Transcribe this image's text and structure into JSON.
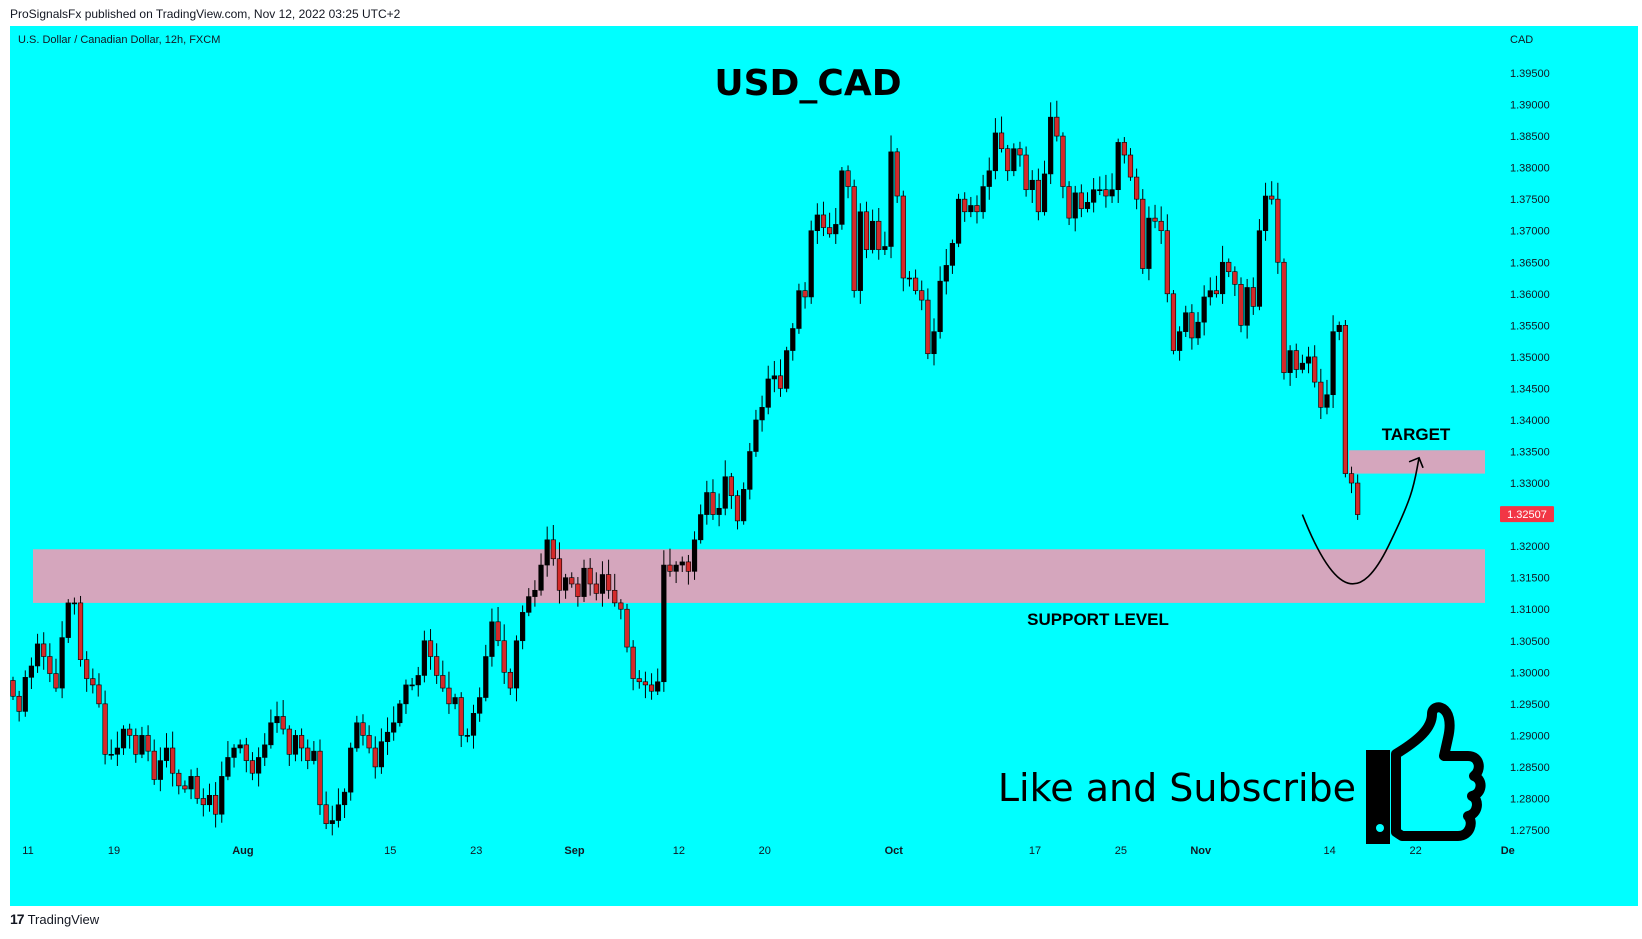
{
  "header": {
    "published": "ProSignalsFx published on TradingView.com, Nov 12, 2022 03:25 UTC+2"
  },
  "footer": {
    "brand": "TradingView"
  },
  "colors": {
    "background": "#00ffff",
    "up_candle": "#000000",
    "down_candle": "#d42a2a",
    "zone": "#d5a6bd",
    "price_badge": "#f23645"
  },
  "chart_data": {
    "type": "candlestick",
    "symbol_label": "U.S. Dollar / Canadian Dollar, 12h, FXCM",
    "title": "USD_CAD",
    "currency": "CAD",
    "ylim": [
      1.272,
      1.399
    ],
    "y_ticks": [
      "1.27500",
      "1.28000",
      "1.28500",
      "1.29000",
      "1.29500",
      "1.30000",
      "1.30500",
      "1.31000",
      "1.31500",
      "1.32000",
      "1.32500",
      "1.33000",
      "1.33500",
      "1.34000",
      "1.34500",
      "1.35000",
      "1.35500",
      "1.36000",
      "1.36500",
      "1.37000",
      "1.37500",
      "1.38000",
      "1.38500",
      "1.39000",
      "1.39500"
    ],
    "x_ticks": [
      {
        "label": "11",
        "bar": 0
      },
      {
        "label": "19",
        "bar": 14
      },
      {
        "label": "Aug",
        "bar": 35
      },
      {
        "label": "15",
        "bar": 59
      },
      {
        "label": "23",
        "bar": 73
      },
      {
        "label": "Sep",
        "bar": 89
      },
      {
        "label": "12",
        "bar": 106
      },
      {
        "label": "20",
        "bar": 120
      },
      {
        "label": "Oct",
        "bar": 141
      },
      {
        "label": "17",
        "bar": 164
      },
      {
        "label": "25",
        "bar": 178
      },
      {
        "label": "Nov",
        "bar": 191
      },
      {
        "label": "14",
        "bar": 212
      },
      {
        "label": "22",
        "bar": 226
      },
      {
        "label": "De",
        "bar": 241
      }
    ],
    "last_price": "1.32507",
    "support_zone": {
      "label": "SUPPORT LEVEL",
      "low": 1.311,
      "high": 1.3195
    },
    "target_zone": {
      "label": "TARGET",
      "low": 1.3315,
      "high": 1.3352
    },
    "projection_path": [
      [
        210,
        1.325
      ],
      [
        218,
        1.3145
      ],
      [
        224,
        1.32
      ],
      [
        229,
        1.334
      ]
    ],
    "candles_closes": [
      1.2962,
      1.2938,
      1.2992,
      1.301,
      1.3045,
      1.3025,
      1.2998,
      1.2975,
      1.3055,
      1.311,
      1.311,
      1.302,
      1.299,
      1.298,
      1.295,
      1.287,
      1.287,
      1.288,
      1.291,
      1.29,
      1.287,
      1.29,
      1.2875,
      1.283,
      1.286,
      1.288,
      1.284,
      1.282,
      1.2815,
      1.2835,
      1.28,
      1.279,
      1.2805,
      1.2775,
      1.2835,
      1.2865,
      1.288,
      1.2885,
      1.286,
      1.284,
      1.2865,
      1.2885,
      1.292,
      1.293,
      1.291,
      1.287,
      1.29,
      1.288,
      1.286,
      1.2875,
      1.279,
      1.276,
      1.2765,
      1.279,
      1.281,
      1.288,
      1.292,
      1.29,
      1.288,
      1.285,
      1.289,
      1.2905,
      1.292,
      1.295,
      1.298,
      1.298,
      1.2995,
      1.305,
      1.3025,
      1.2995,
      1.2975,
      1.295,
      1.296,
      1.29,
      1.29,
      1.2935,
      1.296,
      1.3025,
      1.308,
      1.305,
      1.3,
      1.2975,
      1.305,
      1.3095,
      1.312,
      1.313,
      1.317,
      1.321,
      1.318,
      1.313,
      1.315,
      1.314,
      1.312,
      1.3165,
      1.314,
      1.3125,
      1.3155,
      1.313,
      1.311,
      1.31,
      1.304,
      1.299,
      1.2985,
      1.298,
      1.297,
      1.2985,
      1.317,
      1.316,
      1.317,
      1.3175,
      1.316,
      1.321,
      1.325,
      1.3285,
      1.325,
      1.326,
      1.331,
      1.328,
      1.324,
      1.329,
      1.335,
      1.34,
      1.342,
      1.3465,
      1.347,
      1.345,
      1.351,
      1.3545,
      1.3605,
      1.3595,
      1.37,
      1.3725,
      1.3705,
      1.3695,
      1.371,
      1.3795,
      1.377,
      1.3605,
      1.373,
      1.367,
      1.3715,
      1.367,
      1.3675,
      1.3825,
      1.3755,
      1.3625,
      1.3625,
      1.3605,
      1.359,
      1.3505,
      1.354,
      1.362,
      1.3645,
      1.368,
      1.375,
      1.373,
      1.374,
      1.373,
      1.377,
      1.3795,
      1.3855,
      1.383,
      1.3795,
      1.383,
      1.382,
      1.3765,
      1.378,
      1.373,
      1.379,
      1.388,
      1.385,
      1.377,
      1.372,
      1.376,
      1.3735,
      1.3745,
      1.3765,
      1.3765,
      1.3755,
      1.3765,
      1.384,
      1.382,
      1.3785,
      1.375,
      1.364,
      1.372,
      1.3715,
      1.37,
      1.36,
      1.351,
      1.354,
      1.357,
      1.353,
      1.3555,
      1.3595,
      1.3605,
      1.36,
      1.365,
      1.3635,
      1.3615,
      1.355,
      1.361,
      1.358,
      1.37,
      1.3755,
      1.375,
      1.365,
      1.3475,
      1.351,
      1.348,
      1.349,
      1.35,
      1.346,
      1.342,
      1.344,
      1.354,
      1.355,
      1.3315,
      1.33,
      1.325
    ]
  }
}
